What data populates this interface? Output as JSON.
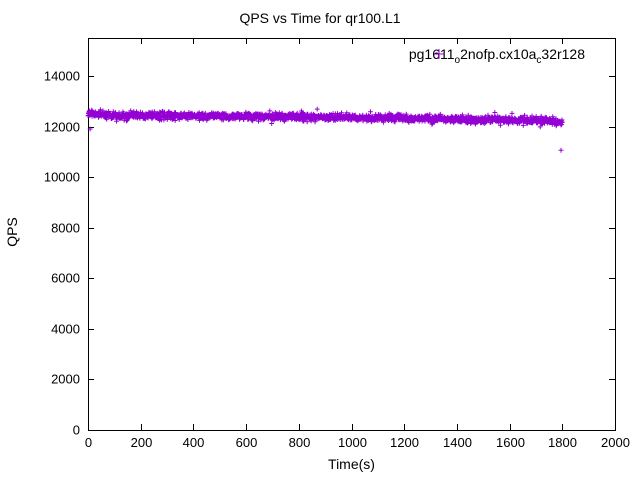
{
  "title": "QPS vs Time for qr100.L1",
  "axes": {
    "x_label": "Time(s)",
    "y_label": "QPS"
  },
  "legend": {
    "position": "top-right",
    "entries": [
      {
        "name": "pg1611_o2nofp.cx10a_c32r128",
        "label_segments": [
          {
            "t": "pg1611"
          },
          {
            "t": "o",
            "sub": true
          },
          {
            "t": "2nofp.cx10a"
          },
          {
            "t": "c",
            "sub": true
          },
          {
            "t": "32r128"
          }
        ],
        "marker": "plus",
        "color": "#9400d3"
      }
    ]
  },
  "chart_data": {
    "type": "scatter",
    "title": "QPS vs Time for qr100.L1",
    "xlabel": "Time(s)",
    "ylabel": "QPS",
    "xlim": [
      0,
      2000
    ],
    "ylim": [
      0,
      15500
    ],
    "xticks": [
      0,
      200,
      400,
      600,
      800,
      1000,
      1200,
      1400,
      1600,
      1800,
      2000
    ],
    "yticks": [
      0,
      2000,
      4000,
      6000,
      8000,
      10000,
      12000,
      14000
    ],
    "grid": false,
    "marker_color": "#9400d3",
    "series": [
      {
        "name": "pg1611_o2nofp.cx10a_c32r128",
        "marker": "plus",
        "color": "#9400d3",
        "x_start": 0,
        "x_end": 1800,
        "sample_interval_s": 1,
        "trend_anchors": [
          [
            0,
            12500
          ],
          [
            100,
            12450
          ],
          [
            200,
            12430
          ],
          [
            400,
            12410
          ],
          [
            600,
            12400
          ],
          [
            800,
            12380
          ],
          [
            1000,
            12350
          ],
          [
            1200,
            12320
          ],
          [
            1400,
            12300
          ],
          [
            1600,
            12260
          ],
          [
            1750,
            12220
          ],
          [
            1800,
            12170
          ]
        ],
        "noise_std_qps": 70,
        "heavy_tail_prob": 0.05,
        "heavy_tail_extra_qps": 200,
        "seed": 1234,
        "outliers": [
          [
            8,
            11900
          ],
          [
            1795,
            11060
          ]
        ]
      }
    ]
  }
}
